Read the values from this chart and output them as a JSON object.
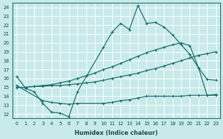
{
  "title": "",
  "xlabel": "Humidex (Indice chaleur)",
  "ylabel": "",
  "bg_color": "#c8eaea",
  "line_color": "#1a6b6b",
  "grid_color": "#ffffff",
  "x_ticks": [
    0,
    1,
    2,
    3,
    4,
    5,
    6,
    7,
    8,
    9,
    10,
    11,
    12,
    13,
    14,
    15,
    16,
    17,
    18,
    19,
    20,
    21,
    22,
    23
  ],
  "y_ticks": [
    12,
    13,
    14,
    15,
    16,
    17,
    18,
    19,
    20,
    21,
    22,
    23,
    24
  ],
  "xlim": [
    -0.5,
    23.5
  ],
  "ylim": [
    11.5,
    24.5
  ],
  "line1_x": [
    0,
    1,
    2,
    3,
    4,
    5,
    6,
    7,
    10,
    11,
    12,
    13,
    14,
    15,
    16,
    17,
    18,
    19,
    20,
    21,
    22,
    23
  ],
  "line1_y": [
    16.2,
    14.9,
    14.5,
    13.2,
    12.2,
    12.1,
    11.7,
    14.5,
    19.5,
    21.2,
    22.2,
    21.5,
    24.2,
    22.2,
    22.3,
    21.8,
    20.9,
    19.8,
    18.7,
    17.2,
    15.9,
    15.8
  ],
  "line2_x": [
    0,
    1,
    2,
    3,
    4,
    5,
    6,
    7,
    8,
    9,
    10,
    11,
    12,
    13,
    14,
    15,
    16,
    17,
    18,
    19,
    20,
    21,
    22,
    23
  ],
  "line2_y": [
    15.0,
    15.0,
    15.1,
    15.1,
    15.2,
    15.2,
    15.3,
    15.4,
    15.5,
    15.6,
    15.8,
    16.0,
    16.2,
    16.4,
    16.6,
    16.9,
    17.1,
    17.4,
    17.7,
    18.0,
    18.3,
    18.6,
    18.8,
    19.0
  ],
  "line3_x": [
    0,
    1,
    2,
    3,
    4,
    5,
    6,
    7,
    8,
    9,
    10,
    11,
    12,
    13,
    14,
    15,
    16,
    17,
    18,
    19,
    20,
    21,
    22,
    23
  ],
  "line3_y": [
    15.0,
    15.0,
    15.1,
    15.2,
    15.3,
    15.5,
    15.7,
    16.0,
    16.3,
    16.6,
    17.0,
    17.3,
    17.7,
    18.1,
    18.5,
    18.9,
    19.2,
    19.5,
    19.8,
    20.0,
    19.7,
    17.2,
    14.1,
    14.1
  ],
  "line4_x": [
    0,
    3,
    4,
    5,
    6,
    7,
    10,
    11,
    12,
    13,
    14,
    15,
    16,
    17,
    18,
    19,
    20,
    21,
    22,
    23
  ],
  "line4_y": [
    15.2,
    13.5,
    13.3,
    13.2,
    13.1,
    13.2,
    13.2,
    13.3,
    13.5,
    13.6,
    13.8,
    14.0,
    14.0,
    14.0,
    14.0,
    14.0,
    14.1,
    14.1,
    14.1,
    14.2
  ]
}
